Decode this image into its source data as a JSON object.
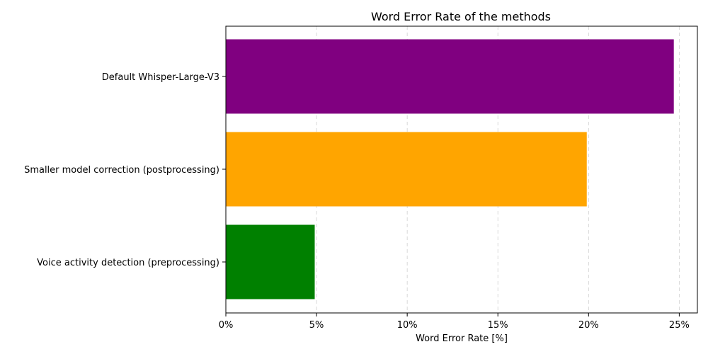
{
  "chart_data": {
    "type": "bar",
    "orientation": "horizontal",
    "title": "Word Error Rate of the methods",
    "xlabel": "Word Error Rate [%]",
    "ylabel": "",
    "categories": [
      "Default Whisper-Large-V3",
      "Smaller model correction (postprocessing)",
      "Voice activity detection (preprocessing)"
    ],
    "values": [
      24.7,
      19.9,
      4.9
    ],
    "colors": [
      "#800080",
      "#ffa500",
      "#008000"
    ],
    "xlim": [
      0,
      26
    ],
    "xticks": [
      0,
      5,
      10,
      15,
      20,
      25
    ],
    "xtick_labels": [
      "0%",
      "5%",
      "10%",
      "15%",
      "20%",
      "25%"
    ],
    "grid": "x-dashed",
    "legend": "none"
  }
}
